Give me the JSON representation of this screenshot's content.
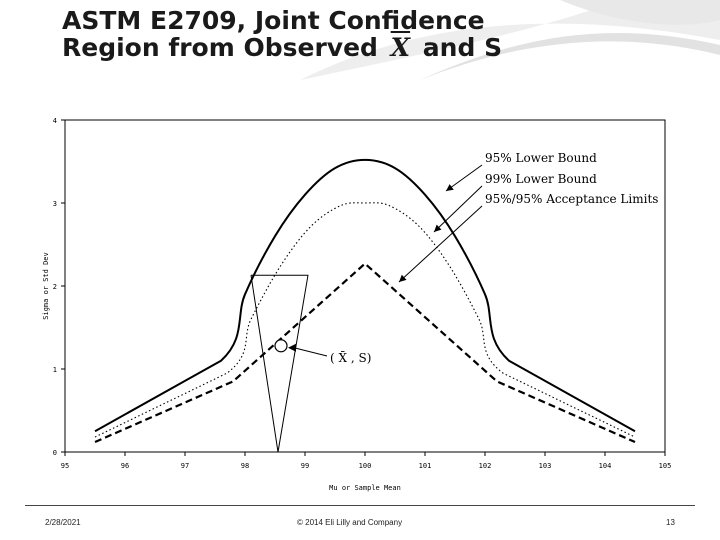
{
  "slide": {
    "title_part1": "ASTM E2709, Joint Confidence",
    "title_part2": "Region from Observed",
    "title_xbar": "X",
    "title_part3": "and S",
    "footer_date": "2/28/2021",
    "footer_copy": "© 2014 Eli Lilly and Company",
    "footer_page": "13"
  },
  "chart_data": {
    "type": "line",
    "xlabel": "Mu or Sample Mean",
    "ylabel": "Sigma or Std Dev",
    "xlim": [
      95,
      105
    ],
    "ylim": [
      0,
      4
    ],
    "x_ticks": [
      "95",
      "96",
      "97",
      "98",
      "99",
      "100",
      "101",
      "102",
      "103",
      "104",
      "105"
    ],
    "y_ticks": [
      "0",
      "1",
      "2",
      "3",
      "4"
    ],
    "series": [
      {
        "name": "95% Lower Bound",
        "style": "solid",
        "points": [
          [
            95.5,
            0.25
          ],
          [
            97.6,
            1.1
          ],
          [
            98.0,
            1.9
          ],
          [
            98.5,
            2.6
          ],
          [
            99.0,
            3.1
          ],
          [
            99.5,
            3.42
          ],
          [
            100.0,
            3.52
          ],
          [
            100.5,
            3.42
          ],
          [
            101.0,
            3.1
          ],
          [
            101.5,
            2.6
          ],
          [
            102.0,
            1.9
          ],
          [
            102.4,
            1.1
          ],
          [
            104.5,
            0.25
          ]
        ]
      },
      {
        "name": "99% Lower Bound",
        "style": "dotted",
        "points": [
          [
            95.5,
            0.18
          ],
          [
            97.7,
            0.95
          ],
          [
            98.1,
            1.6
          ],
          [
            98.6,
            2.25
          ],
          [
            99.1,
            2.72
          ],
          [
            99.6,
            2.97
          ],
          [
            100.0,
            3.0
          ],
          [
            100.4,
            2.97
          ],
          [
            100.9,
            2.72
          ],
          [
            101.4,
            2.25
          ],
          [
            101.9,
            1.6
          ],
          [
            102.3,
            0.95
          ],
          [
            104.5,
            0.18
          ]
        ]
      },
      {
        "name": "95%/95% Acceptance Limits",
        "style": "dashed",
        "points": [
          [
            95.5,
            0.12
          ],
          [
            97.8,
            0.85
          ],
          [
            100.0,
            2.27
          ],
          [
            102.2,
            0.85
          ],
          [
            104.5,
            0.12
          ]
        ]
      },
      {
        "name": "Joint Confidence Region",
        "style": "solid-thin",
        "points": [
          [
            98.1,
            2.13
          ],
          [
            98.55,
            0.0
          ],
          [
            99.05,
            2.13
          ],
          [
            98.1,
            2.13
          ]
        ]
      }
    ],
    "observed_point": {
      "x": 98.6,
      "y": 1.28,
      "label": "( X̄ , S)"
    },
    "legend_placement": "annotations top-right with arrows",
    "grid": false
  }
}
